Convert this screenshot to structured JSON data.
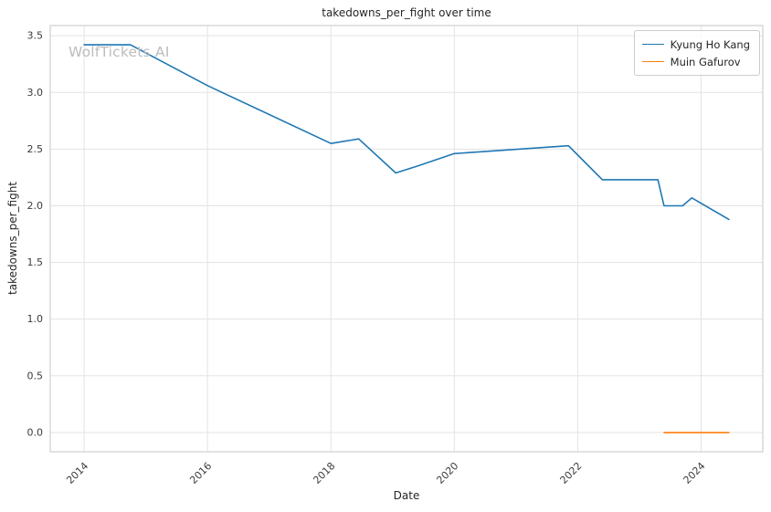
{
  "chart_data": {
    "type": "line",
    "title": "takedowns_per_fight over time",
    "xlabel": "Date",
    "ylabel": "takedowns_per_fight",
    "watermark": "WolfTickets AI",
    "grid": true,
    "legend_position": "upper right",
    "xlim": [
      2013.45,
      2025.0
    ],
    "ylim": [
      -0.17,
      3.59
    ],
    "x_ticks": [
      2014,
      2016,
      2018,
      2020,
      2022,
      2024
    ],
    "x_tick_labels": [
      "2014",
      "2016",
      "2018",
      "2020",
      "2022",
      "2024"
    ],
    "y_ticks": [
      0.0,
      0.5,
      1.0,
      1.5,
      2.0,
      2.5,
      3.0,
      3.5
    ],
    "y_tick_labels": [
      "0.0",
      "0.5",
      "1.0",
      "1.5",
      "2.0",
      "2.5",
      "3.0",
      "3.5"
    ],
    "colors": {
      "grid": "#e3e3e3",
      "spine": "#cfcfcf",
      "tick_text": "#3b3b3b",
      "background": "#ffffff"
    },
    "series": [
      {
        "name": "Kyung Ho Kang",
        "color": "#1f77b4",
        "x": [
          2014.0,
          2014.75,
          2016.0,
          2018.0,
          2018.45,
          2019.05,
          2019.4,
          2020.0,
          2021.85,
          2022.4,
          2023.3,
          2023.4,
          2023.7,
          2023.85,
          2024.45
        ],
        "y": [
          3.42,
          3.42,
          3.06,
          2.55,
          2.59,
          2.29,
          2.35,
          2.46,
          2.53,
          2.23,
          2.23,
          2.0,
          2.0,
          2.07,
          1.88
        ]
      },
      {
        "name": "Muin Gafurov",
        "color": "#ff7f0e",
        "x": [
          2023.4,
          2024.45
        ],
        "y": [
          0.0,
          0.0
        ]
      }
    ]
  }
}
